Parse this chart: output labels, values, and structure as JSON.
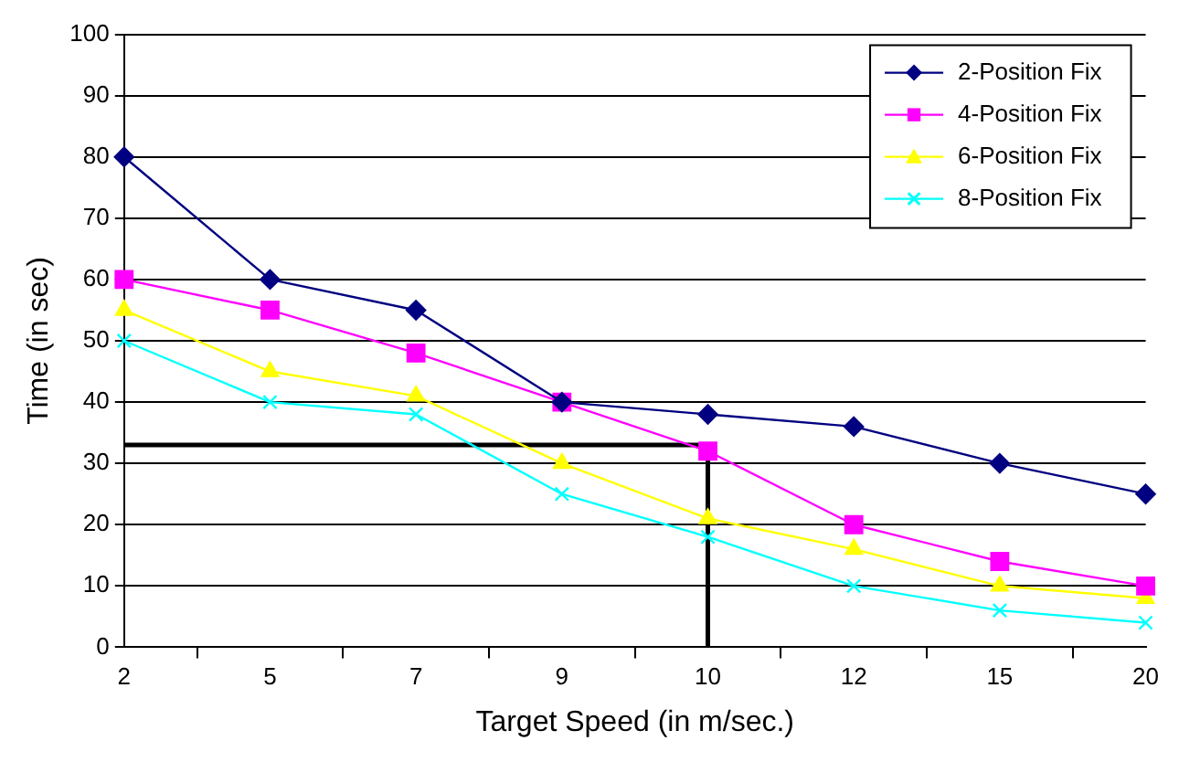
{
  "chart_data": {
    "type": "line",
    "xlabel": "Target Speed (in m/sec.)",
    "ylabel": "Time (in sec)",
    "categories": [
      "2",
      "5",
      "7",
      "9",
      "10",
      "12",
      "15",
      "20"
    ],
    "series": [
      {
        "name": "2-Position Fix",
        "color": "#000080",
        "marker": "diamond",
        "values": [
          80,
          60,
          55,
          40,
          38,
          36,
          30,
          25
        ]
      },
      {
        "name": "4-Position Fix",
        "color": "#ff00ff",
        "marker": "square",
        "values": [
          60,
          55,
          48,
          40,
          32,
          20,
          14,
          10
        ]
      },
      {
        "name": "6-Position Fix",
        "color": "#ffff00",
        "marker": "triangle",
        "values": [
          55,
          45,
          41,
          30,
          21,
          16,
          10,
          8
        ]
      },
      {
        "name": "8-Position Fix",
        "color": "#00ffff",
        "marker": "cross",
        "values": [
          50,
          40,
          38,
          25,
          18,
          10,
          6,
          4
        ]
      }
    ],
    "ylim": [
      0,
      100
    ],
    "yticks": [
      0,
      10,
      20,
      30,
      40,
      50,
      60,
      70,
      80,
      90,
      100
    ],
    "grid": "y",
    "legend": "top right",
    "ref_lines": [
      {
        "axis": "y",
        "value": 33,
        "color": "#000000"
      },
      {
        "axis": "x",
        "value": "10",
        "color": "#000000"
      }
    ]
  }
}
